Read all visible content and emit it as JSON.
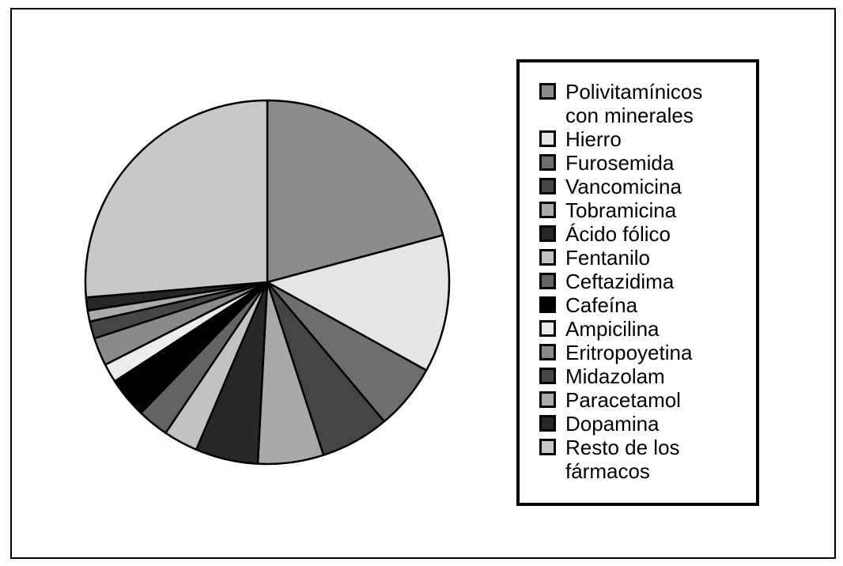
{
  "figure": {
    "background_color": "#ffffff",
    "frame_border_color": "#000000",
    "legend_border_color": "#000000"
  },
  "chart_data": {
    "type": "pie",
    "title": "",
    "start_angle_deg": 0,
    "direction": "clockwise",
    "legend_position": "right",
    "values_note": "percentages estimated from slice arc angles; no numeric data labels are shown in the figure",
    "slices": [
      {
        "label": "Polivitamínicos con minerales",
        "angle_deg": 75.0,
        "value_pct": 20.8,
        "color": "#8c8c8c"
      },
      {
        "label": "Hierro",
        "angle_deg": 44.0,
        "value_pct": 12.2,
        "color": "#e5e5e5"
      },
      {
        "label": "Furosemida",
        "angle_deg": 21.0,
        "value_pct": 5.8,
        "color": "#6e6e6e"
      },
      {
        "label": "Vancomicina",
        "angle_deg": 22.0,
        "value_pct": 6.1,
        "color": "#454545"
      },
      {
        "label": "Tobramicina",
        "angle_deg": 21.0,
        "value_pct": 5.8,
        "color": "#a9a9a9"
      },
      {
        "label": "Ácido fólico",
        "angle_deg": 20.0,
        "value_pct": 5.6,
        "color": "#272727"
      },
      {
        "label": "Fentanilo",
        "angle_deg": 11.0,
        "value_pct": 3.1,
        "color": "#c2c2c2"
      },
      {
        "label": "Ceftazidima",
        "angle_deg": 10.0,
        "value_pct": 2.8,
        "color": "#646464"
      },
      {
        "label": "Cafeína",
        "angle_deg": 13.0,
        "value_pct": 3.6,
        "color": "#000000"
      },
      {
        "label": "Ampicilina",
        "angle_deg": 6.0,
        "value_pct": 1.7,
        "color": "#ececec"
      },
      {
        "label": "Eritropoyetina",
        "angle_deg": 9.0,
        "value_pct": 2.5,
        "color": "#8a8a8a"
      },
      {
        "label": "Midazolam",
        "angle_deg": 5.5,
        "value_pct": 1.5,
        "color": "#464646"
      },
      {
        "label": "Paracetamol",
        "angle_deg": 3.5,
        "value_pct": 1.0,
        "color": "#ababab"
      },
      {
        "label": "Dopamina",
        "angle_deg": 4.2,
        "value_pct": 1.2,
        "color": "#262626"
      },
      {
        "label": "Resto de los fármacos",
        "angle_deg": 94.8,
        "value_pct": 26.3,
        "color": "#c8c8c8"
      }
    ]
  },
  "legend": {
    "items": [
      {
        "text": "Polivitamínicos\ncon minerales"
      },
      {
        "text": "Hierro"
      },
      {
        "text": "Furosemida"
      },
      {
        "text": "Vancomicina"
      },
      {
        "text": "Tobramicina"
      },
      {
        "text": "Ácido fólico"
      },
      {
        "text": "Fentanilo"
      },
      {
        "text": "Ceftazidima"
      },
      {
        "text": "Cafeína"
      },
      {
        "text": "Ampicilina"
      },
      {
        "text": "Eritropoyetina"
      },
      {
        "text": "Midazolam"
      },
      {
        "text": "Paracetamol"
      },
      {
        "text": "Dopamina"
      },
      {
        "text": "Resto de los\nfármacos"
      }
    ]
  }
}
